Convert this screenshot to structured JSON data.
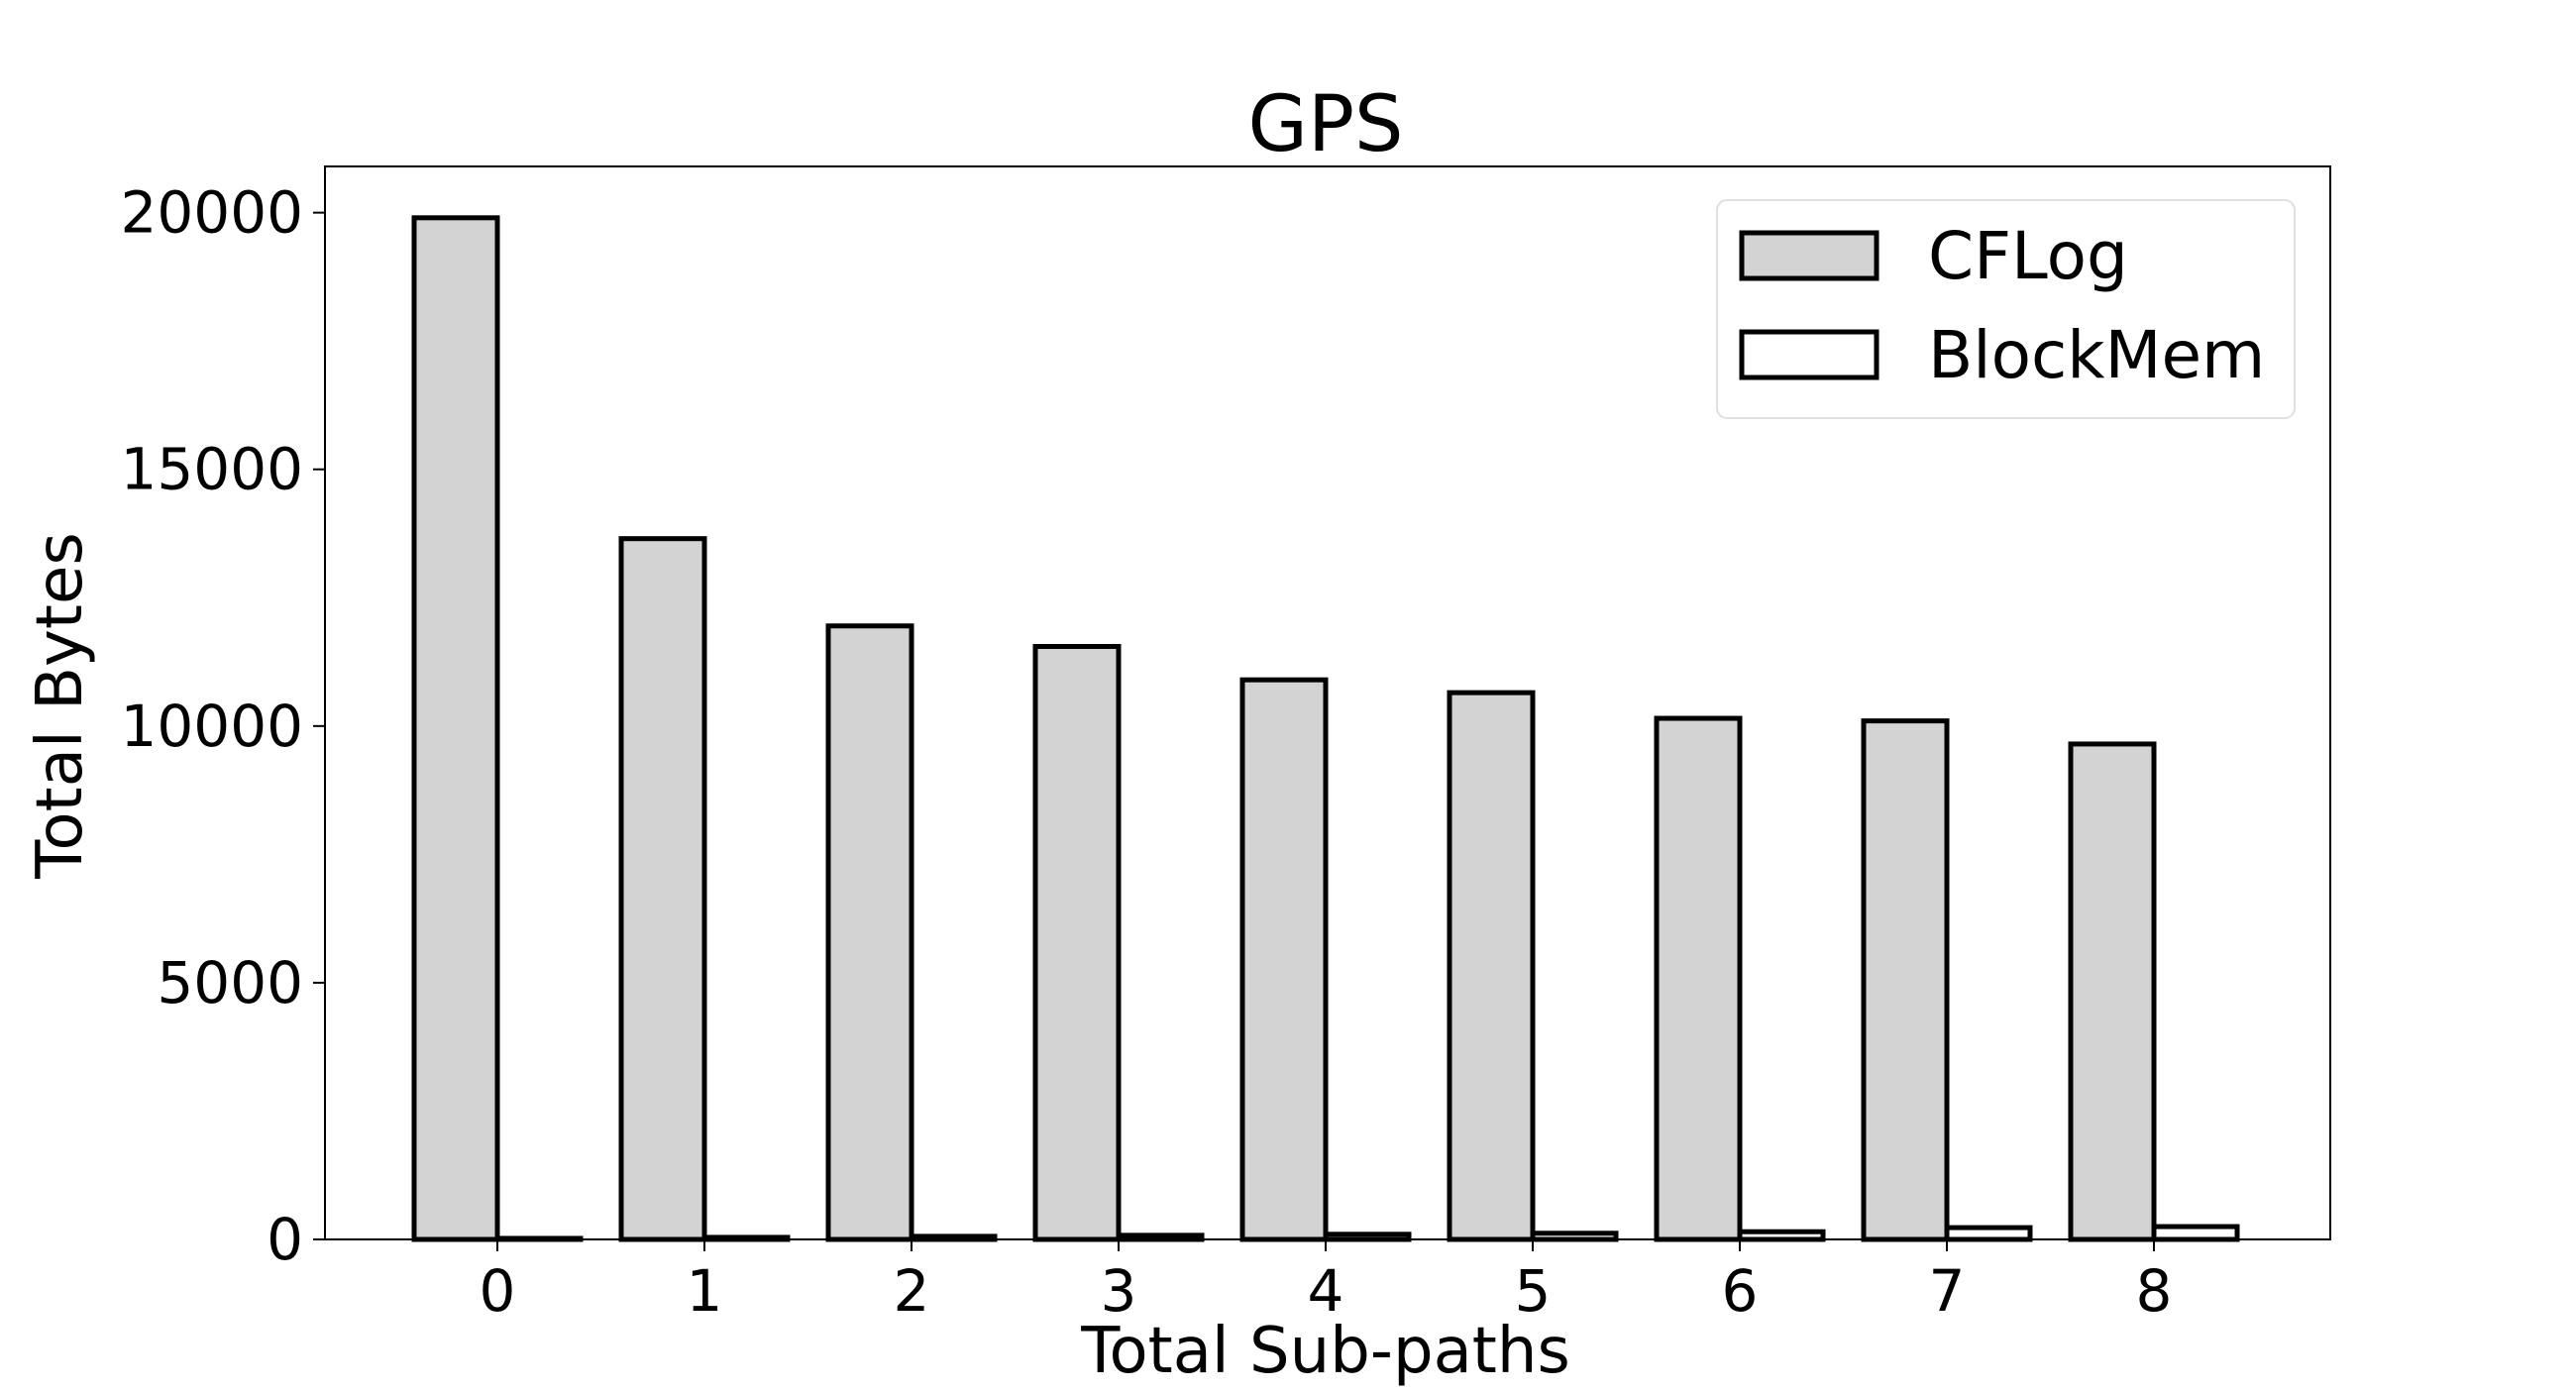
{
  "chart_data": {
    "type": "bar",
    "title": "GPS",
    "xlabel": "Total Sub-paths",
    "ylabel": "Total Bytes",
    "categories": [
      "0",
      "1",
      "2",
      "3",
      "4",
      "5",
      "6",
      "7",
      "8"
    ],
    "series": [
      {
        "name": "CFLog",
        "fill": "#d3d3d3",
        "values": [
          19900,
          13650,
          11950,
          11550,
          10900,
          10650,
          10150,
          10100,
          9650
        ]
      },
      {
        "name": "BlockMem",
        "fill": "#ffffff",
        "values": [
          20,
          40,
          60,
          80,
          100,
          120,
          150,
          230,
          250
        ]
      }
    ],
    "ylim": [
      0,
      20900
    ],
    "yticks": [
      0,
      5000,
      10000,
      15000,
      20000
    ],
    "grid": false,
    "legend": "top-right",
    "colors": {
      "edge": "#000000"
    }
  }
}
